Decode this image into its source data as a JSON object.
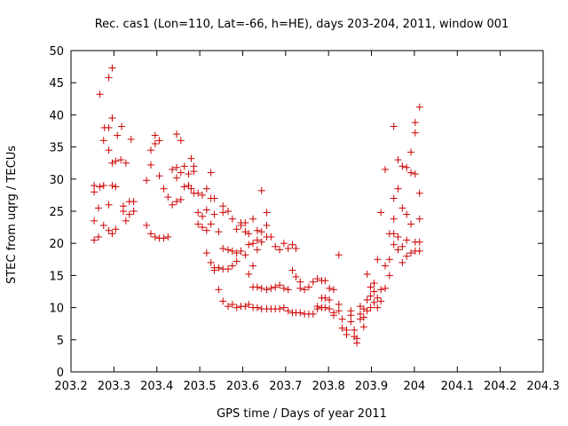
{
  "chart_data": {
    "type": "scatter",
    "title": "Rec. cas1 (Lon=110, Lat=-66, h=HE), days 203-204, 2011, window 001",
    "xlabel": "GPS time / Days of year 2011",
    "ylabel": "STEC from uqrg / TECUs",
    "xlim": [
      203.2,
      204.3
    ],
    "ylim": [
      0,
      50
    ],
    "x_ticks": [
      "203.2",
      "203.3",
      "203.4",
      "203.5",
      "203.6",
      "203.7",
      "203.8",
      "203.9",
      "204",
      "204.1",
      "204.2",
      "204.3"
    ],
    "y_ticks": [
      "0",
      "5",
      "10",
      "15",
      "20",
      "25",
      "30",
      "35",
      "40",
      "45",
      "50"
    ],
    "grid": false,
    "marker": "+",
    "marker_color": "#cc0000",
    "series": [
      {
        "values": [
          [
            203.254,
            29.0
          ],
          [
            203.254,
            28.0
          ],
          [
            203.254,
            23.5
          ],
          [
            203.254,
            20.5
          ],
          [
            203.264,
            25.5
          ],
          [
            203.264,
            21.0
          ],
          [
            203.267,
            43.2
          ],
          [
            203.267,
            28.8
          ],
          [
            203.276,
            36.0
          ],
          [
            203.276,
            29.0
          ],
          [
            203.276,
            22.8
          ],
          [
            203.278,
            38.0
          ],
          [
            203.288,
            45.8
          ],
          [
            203.288,
            38.0
          ],
          [
            203.288,
            34.5
          ],
          [
            203.288,
            26.0
          ],
          [
            203.288,
            22.0
          ],
          [
            203.296,
            47.3
          ],
          [
            203.296,
            39.5
          ],
          [
            203.296,
            32.5
          ],
          [
            203.296,
            29.0
          ],
          [
            203.296,
            21.5
          ],
          [
            203.304,
            32.8
          ],
          [
            203.304,
            28.8
          ],
          [
            203.304,
            22.2
          ],
          [
            203.308,
            36.8
          ],
          [
            203.316,
            33.0
          ],
          [
            203.318,
            38.2
          ],
          [
            203.322,
            25.8
          ],
          [
            203.322,
            25.0
          ],
          [
            203.328,
            32.5
          ],
          [
            203.328,
            23.5
          ],
          [
            203.336,
            26.5
          ],
          [
            203.336,
            24.5
          ],
          [
            203.34,
            36.2
          ],
          [
            203.346,
            26.5
          ],
          [
            203.346,
            25.0
          ],
          [
            203.376,
            29.8
          ],
          [
            203.376,
            22.8
          ],
          [
            203.386,
            34.5
          ],
          [
            203.386,
            32.2
          ],
          [
            203.386,
            21.5
          ],
          [
            203.396,
            36.8
          ],
          [
            203.396,
            35.5
          ],
          [
            203.396,
            21.0
          ],
          [
            203.406,
            36.0
          ],
          [
            203.406,
            30.5
          ],
          [
            203.406,
            20.8
          ],
          [
            203.416,
            28.5
          ],
          [
            203.416,
            20.8
          ],
          [
            203.426,
            27.2
          ],
          [
            203.426,
            21.0
          ],
          [
            203.436,
            31.5
          ],
          [
            203.436,
            26.0
          ],
          [
            203.446,
            37.0
          ],
          [
            203.446,
            31.8
          ],
          [
            203.446,
            30.2
          ],
          [
            203.446,
            26.5
          ],
          [
            203.456,
            36.0
          ],
          [
            203.456,
            31.0
          ],
          [
            203.456,
            26.8
          ],
          [
            203.464,
            32.0
          ],
          [
            203.464,
            28.8
          ],
          [
            203.474,
            30.8
          ],
          [
            203.474,
            29.0
          ],
          [
            203.48,
            33.2
          ],
          [
            203.48,
            28.5
          ],
          [
            203.486,
            32.0
          ],
          [
            203.486,
            31.2
          ],
          [
            203.486,
            27.8
          ],
          [
            203.496,
            27.8
          ],
          [
            203.496,
            24.8
          ],
          [
            203.496,
            23.0
          ],
          [
            203.506,
            27.5
          ],
          [
            203.506,
            24.2
          ],
          [
            203.506,
            22.5
          ],
          [
            203.516,
            28.5
          ],
          [
            203.516,
            25.2
          ],
          [
            203.516,
            22.0
          ],
          [
            203.516,
            18.5
          ],
          [
            203.526,
            31.0
          ],
          [
            203.526,
            27.0
          ],
          [
            203.526,
            23.0
          ],
          [
            203.526,
            17.0
          ],
          [
            203.534,
            27.0
          ],
          [
            203.534,
            24.5
          ],
          [
            203.534,
            16.2
          ],
          [
            203.534,
            15.8
          ],
          [
            203.544,
            21.8
          ],
          [
            203.544,
            16.2
          ],
          [
            203.544,
            12.8
          ],
          [
            203.554,
            25.8
          ],
          [
            203.554,
            24.8
          ],
          [
            203.554,
            19.2
          ],
          [
            203.554,
            16.0
          ],
          [
            203.554,
            11.0
          ],
          [
            203.566,
            25.0
          ],
          [
            203.566,
            19.0
          ],
          [
            203.566,
            16.0
          ],
          [
            203.566,
            10.2
          ],
          [
            203.576,
            23.8
          ],
          [
            203.576,
            18.8
          ],
          [
            203.576,
            16.5
          ],
          [
            203.576,
            10.5
          ],
          [
            203.586,
            22.2
          ],
          [
            203.586,
            18.5
          ],
          [
            203.586,
            17.2
          ],
          [
            203.586,
            10.0
          ],
          [
            203.596,
            23.2
          ],
          [
            203.596,
            22.8
          ],
          [
            203.596,
            18.8
          ],
          [
            203.596,
            10.2
          ],
          [
            203.606,
            23.2
          ],
          [
            203.606,
            21.8
          ],
          [
            203.606,
            18.2
          ],
          [
            203.606,
            10.2
          ],
          [
            203.614,
            21.5
          ],
          [
            203.614,
            19.8
          ],
          [
            203.614,
            15.2
          ],
          [
            203.614,
            10.5
          ],
          [
            203.624,
            23.8
          ],
          [
            203.624,
            20.0
          ],
          [
            203.624,
            16.5
          ],
          [
            203.624,
            13.2
          ],
          [
            203.624,
            10.0
          ],
          [
            203.634,
            22.0
          ],
          [
            203.634,
            20.5
          ],
          [
            203.634,
            19.0
          ],
          [
            203.634,
            13.2
          ],
          [
            203.634,
            10.0
          ],
          [
            203.644,
            28.2
          ],
          [
            203.644,
            21.8
          ],
          [
            203.644,
            20.2
          ],
          [
            203.644,
            13.0
          ],
          [
            203.644,
            9.8
          ],
          [
            203.656,
            24.8
          ],
          [
            203.656,
            22.8
          ],
          [
            203.656,
            21.0
          ],
          [
            203.656,
            12.8
          ],
          [
            203.656,
            9.8
          ],
          [
            203.666,
            21.0
          ],
          [
            203.666,
            13.0
          ],
          [
            203.666,
            9.8
          ],
          [
            203.676,
            19.5
          ],
          [
            203.676,
            13.2
          ],
          [
            203.676,
            9.8
          ],
          [
            203.686,
            19.0
          ],
          [
            203.686,
            13.5
          ],
          [
            203.686,
            9.8
          ],
          [
            203.696,
            20.0
          ],
          [
            203.696,
            13.0
          ],
          [
            203.696,
            10.0
          ],
          [
            203.706,
            19.2
          ],
          [
            203.706,
            12.8
          ],
          [
            203.706,
            9.5
          ],
          [
            203.716,
            19.8
          ],
          [
            203.716,
            15.8
          ],
          [
            203.716,
            9.2
          ],
          [
            203.724,
            19.2
          ],
          [
            203.724,
            14.8
          ],
          [
            203.724,
            9.2
          ],
          [
            203.734,
            14.0
          ],
          [
            203.734,
            13.0
          ],
          [
            203.734,
            9.2
          ],
          [
            203.744,
            12.8
          ],
          [
            203.744,
            9.0
          ],
          [
            203.754,
            13.2
          ],
          [
            203.754,
            9.0
          ],
          [
            203.764,
            14.0
          ],
          [
            203.764,
            9.0
          ],
          [
            203.774,
            14.5
          ],
          [
            203.774,
            10.2
          ],
          [
            203.774,
            9.8
          ],
          [
            203.784,
            14.2
          ],
          [
            203.784,
            11.5
          ],
          [
            203.784,
            10.0
          ],
          [
            203.792,
            14.2
          ],
          [
            203.792,
            11.5
          ],
          [
            203.792,
            10.0
          ],
          [
            203.802,
            13.0
          ],
          [
            203.802,
            11.2
          ],
          [
            203.802,
            9.8
          ],
          [
            203.812,
            12.8
          ],
          [
            203.812,
            9.2
          ],
          [
            203.812,
            8.8
          ],
          [
            203.824,
            18.2
          ],
          [
            203.824,
            10.5
          ],
          [
            203.824,
            9.5
          ],
          [
            203.832,
            8.2
          ],
          [
            203.832,
            6.8
          ],
          [
            203.842,
            6.5
          ],
          [
            203.842,
            5.8
          ],
          [
            203.852,
            9.5
          ],
          [
            203.852,
            8.8
          ],
          [
            203.852,
            7.8
          ],
          [
            203.86,
            6.5
          ],
          [
            203.86,
            5.5
          ],
          [
            203.866,
            5.2
          ],
          [
            203.866,
            4.5
          ],
          [
            203.874,
            10.2
          ],
          [
            203.874,
            9.0
          ],
          [
            203.874,
            8.2
          ],
          [
            203.882,
            9.8
          ],
          [
            203.882,
            8.5
          ],
          [
            203.882,
            7.0
          ],
          [
            203.89,
            15.2
          ],
          [
            203.89,
            11.2
          ],
          [
            203.89,
            9.5
          ],
          [
            203.898,
            13.2
          ],
          [
            203.898,
            11.8
          ],
          [
            203.898,
            10.0
          ],
          [
            203.906,
            13.8
          ],
          [
            203.906,
            12.5
          ],
          [
            203.906,
            10.8
          ],
          [
            203.914,
            17.5
          ],
          [
            203.914,
            11.5
          ],
          [
            203.914,
            10.0
          ],
          [
            203.922,
            24.8
          ],
          [
            203.922,
            12.8
          ],
          [
            203.922,
            11.0
          ],
          [
            203.932,
            31.5
          ],
          [
            203.932,
            16.5
          ],
          [
            203.932,
            13.0
          ],
          [
            203.942,
            21.5
          ],
          [
            203.942,
            17.5
          ],
          [
            203.942,
            15.0
          ],
          [
            203.952,
            38.2
          ],
          [
            203.952,
            27.0
          ],
          [
            203.952,
            23.8
          ],
          [
            203.952,
            21.5
          ],
          [
            203.952,
            19.8
          ],
          [
            203.962,
            33.0
          ],
          [
            203.962,
            28.5
          ],
          [
            203.962,
            21.0
          ],
          [
            203.962,
            19.0
          ],
          [
            203.972,
            32.0
          ],
          [
            203.972,
            25.5
          ],
          [
            203.972,
            19.5
          ],
          [
            203.972,
            17.0
          ],
          [
            203.982,
            31.8
          ],
          [
            203.982,
            24.5
          ],
          [
            203.982,
            20.5
          ],
          [
            203.982,
            18.0
          ],
          [
            203.992,
            34.2
          ],
          [
            203.992,
            31.0
          ],
          [
            203.992,
            23.0
          ],
          [
            203.992,
            18.5
          ],
          [
            204.002,
            38.8
          ],
          [
            204.002,
            37.2
          ],
          [
            204.002,
            30.8
          ],
          [
            204.002,
            20.2
          ],
          [
            204.002,
            18.8
          ],
          [
            204.012,
            41.2
          ],
          [
            204.012,
            27.8
          ],
          [
            204.012,
            23.8
          ],
          [
            204.012,
            20.2
          ],
          [
            204.012,
            18.8
          ]
        ]
      }
    ]
  }
}
